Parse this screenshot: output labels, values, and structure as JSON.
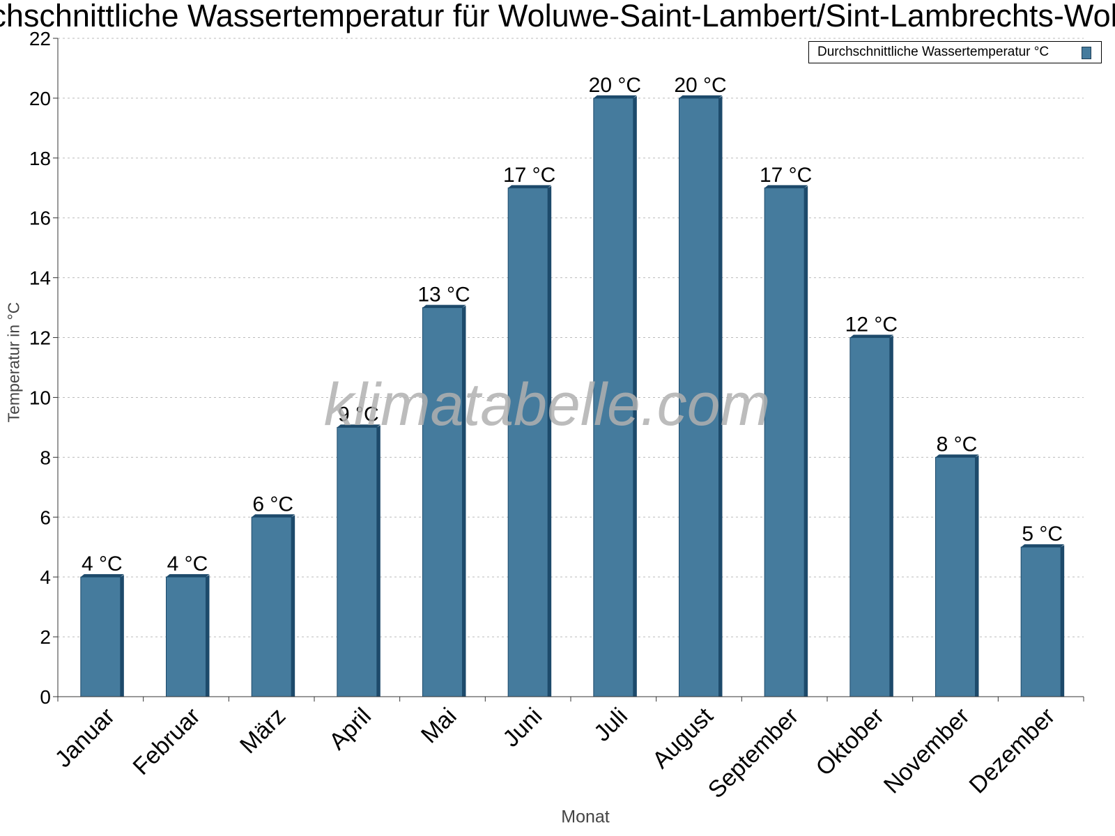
{
  "chart_data": {
    "type": "bar",
    "title": "Durchschnittliche Wassertemperatur für Woluwe-Saint-Lambert/Sint-Lambrechts-Woluwe",
    "xlabel": "Monat",
    "ylabel": "Temperatur in °C",
    "categories": [
      "Januar",
      "Februar",
      "März",
      "April",
      "Mai",
      "Juni",
      "Juli",
      "August",
      "September",
      "Oktober",
      "November",
      "Dezember"
    ],
    "series": [
      {
        "name": "Durchschnittliche Wassertemperatur °C",
        "values": [
          4,
          4,
          6,
          9,
          13,
          17,
          20,
          20,
          17,
          12,
          8,
          5
        ],
        "data_labels": [
          "4 °C",
          "4 °C",
          "6 °C",
          "9 °C",
          "13 °C",
          "17 °C",
          "20 °C",
          "20 °C",
          "17 °C",
          "12 °C",
          "8 °C",
          "5 °C"
        ]
      }
    ],
    "ylim": [
      0,
      22
    ],
    "yticks": [
      0,
      2,
      4,
      6,
      8,
      10,
      12,
      14,
      16,
      18,
      20,
      22
    ],
    "grid": true,
    "legend_position": "top-right",
    "watermark": "klimatabelle.com",
    "colors": {
      "bar": "#457b9d",
      "bar_dark": "#1d4a6b",
      "grid": "#bbbbbb"
    }
  }
}
